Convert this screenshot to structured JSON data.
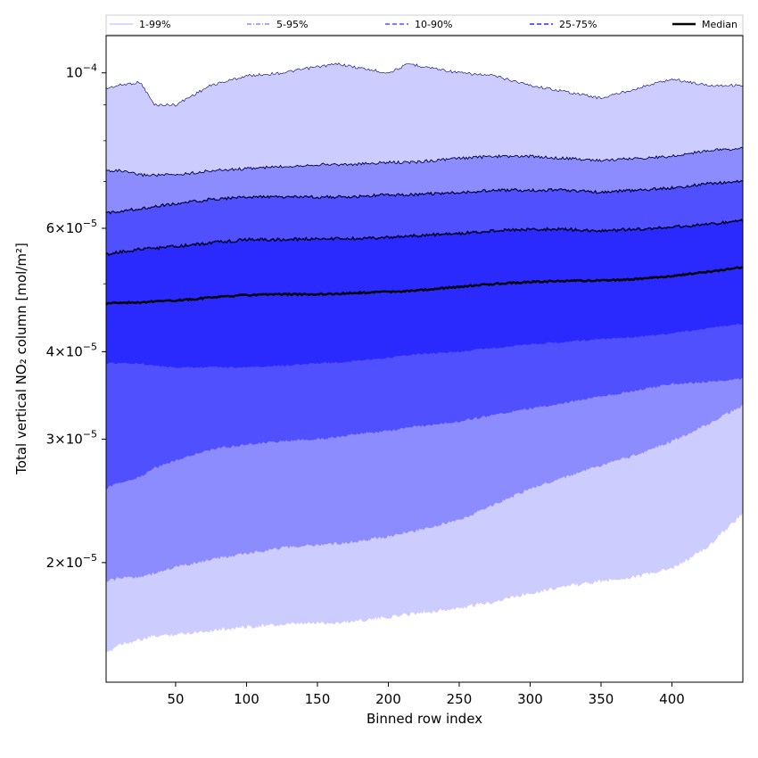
{
  "chart_data": {
    "type": "area",
    "title": "",
    "xlabel": "Binned row index",
    "ylabel": "Total vertical NO₂ column [mol/m²]",
    "xlim": [
      1,
      450
    ],
    "ylim": [
      1.35e-05,
      0.000113
    ],
    "yscale": "log",
    "x_ticks": [
      50,
      100,
      150,
      200,
      250,
      300,
      350,
      400
    ],
    "x_tick_labels": [
      "50",
      "100",
      "150",
      "200",
      "250",
      "300",
      "350",
      "400"
    ],
    "y_ticks": [
      {
        "value": 2e-05,
        "base": "2×10",
        "exp": "−5"
      },
      {
        "value": 3e-05,
        "base": "3×10",
        "exp": "−5"
      },
      {
        "value": 4e-05,
        "base": "4×10",
        "exp": "−5"
      },
      {
        "value": 6e-05,
        "base": "6×10",
        "exp": "−5"
      },
      {
        "value": 0.0001,
        "base": "10",
        "exp": "−4"
      }
    ],
    "legend_position": "top",
    "legend": [
      {
        "label": "1-99%",
        "color": "#ccccff",
        "style": "solid"
      },
      {
        "label": "5-95%",
        "color": "#8c8cff",
        "style": "dashdot"
      },
      {
        "label": "10-90%",
        "color": "#5050ff",
        "style": "dashed"
      },
      {
        "label": "25-75%",
        "color": "#2a2aff",
        "style": "dashed"
      },
      {
        "label": "Median",
        "color": "#000000",
        "style": "solid"
      }
    ],
    "x": [
      1,
      10,
      25,
      35,
      50,
      75,
      100,
      125,
      150,
      165,
      175,
      200,
      215,
      250,
      275,
      300,
      325,
      350,
      375,
      400,
      425,
      450
    ],
    "bands": [
      {
        "name": "1-99%",
        "color": "#ccccff",
        "upper": [
          9.5e-05,
          9.6e-05,
          9.7e-05,
          9e-05,
          9e-05,
          9.6e-05,
          9.9e-05,
          0.0001,
          0.000102,
          0.000103,
          0.000102,
          0.0001,
          0.000103,
          0.0001,
          9.9e-05,
          9.6e-05,
          9.4e-05,
          9.2e-05,
          9.5e-05,
          9.8e-05,
          9.6e-05,
          9.6e-05
        ],
        "lower": [
          1.48e-05,
          1.53e-05,
          1.55e-05,
          1.57e-05,
          1.58e-05,
          1.6e-05,
          1.62e-05,
          1.63e-05,
          1.64e-05,
          1.64e-05,
          1.65e-05,
          1.67e-05,
          1.69e-05,
          1.72e-05,
          1.76e-05,
          1.81e-05,
          1.85e-05,
          1.88e-05,
          1.91e-05,
          1.96e-05,
          2.1e-05,
          2.35e-05
        ]
      },
      {
        "name": "5-95%",
        "color": "#8c8cff",
        "upper": [
          7.25e-05,
          7.25e-05,
          7.15e-05,
          7.15e-05,
          7.15e-05,
          7.25e-05,
          7.3e-05,
          7.35e-05,
          7.4e-05,
          7.4e-05,
          7.4e-05,
          7.45e-05,
          7.45e-05,
          7.55e-05,
          7.6e-05,
          7.6e-05,
          7.55e-05,
          7.5e-05,
          7.55e-05,
          7.6e-05,
          7.75e-05,
          7.8e-05
        ],
        "lower": [
          1.88e-05,
          1.9e-05,
          1.91e-05,
          1.93e-05,
          1.97e-05,
          2.02e-05,
          2.06e-05,
          2.1e-05,
          2.12e-05,
          2.13e-05,
          2.14e-05,
          2.18e-05,
          2.21e-05,
          2.3e-05,
          2.42e-05,
          2.55e-05,
          2.65e-05,
          2.75e-05,
          2.85e-05,
          2.98e-05,
          3.15e-05,
          3.35e-05
        ]
      },
      {
        "name": "10-90%",
        "color": "#5050ff",
        "upper": [
          6.3e-05,
          6.35e-05,
          6.4e-05,
          6.45e-05,
          6.5e-05,
          6.6e-05,
          6.65e-05,
          6.65e-05,
          6.65e-05,
          6.65e-05,
          6.65e-05,
          6.7e-05,
          6.7e-05,
          6.75e-05,
          6.8e-05,
          6.8e-05,
          6.8e-05,
          6.75e-05,
          6.8e-05,
          6.85e-05,
          6.95e-05,
          7e-05
        ],
        "lower": [
          2.55e-05,
          2.6e-05,
          2.65e-05,
          2.73e-05,
          2.8e-05,
          2.9e-05,
          2.95e-05,
          2.98e-05,
          3e-05,
          3.02e-05,
          3.05e-05,
          3.08e-05,
          3.12e-05,
          3.18e-05,
          3.25e-05,
          3.32e-05,
          3.38e-05,
          3.45e-05,
          3.52e-05,
          3.6e-05,
          3.62e-05,
          3.66e-05
        ]
      },
      {
        "name": "25-75%",
        "color": "#2a2aff",
        "upper": [
          5.5e-05,
          5.55e-05,
          5.6e-05,
          5.62e-05,
          5.65e-05,
          5.72e-05,
          5.78e-05,
          5.78e-05,
          5.8e-05,
          5.8e-05,
          5.8e-05,
          5.82e-05,
          5.85e-05,
          5.9e-05,
          5.95e-05,
          5.98e-05,
          5.98e-05,
          5.95e-05,
          5.98e-05,
          6.02e-05,
          6.08e-05,
          6.15e-05
        ],
        "lower": [
          3.85e-05,
          3.85e-05,
          3.85e-05,
          3.82e-05,
          3.8e-05,
          3.8e-05,
          3.8e-05,
          3.82e-05,
          3.85e-05,
          3.86e-05,
          3.88e-05,
          3.92e-05,
          3.96e-05,
          4e-05,
          4.05e-05,
          4.1e-05,
          4.13e-05,
          4.17e-05,
          4.2e-05,
          4.25e-05,
          4.32e-05,
          4.38e-05
        ]
      }
    ],
    "median": {
      "name": "Median",
      "color": "#000000",
      "values": [
        4.68e-05,
        4.7e-05,
        4.7e-05,
        4.72e-05,
        4.73e-05,
        4.78e-05,
        4.82e-05,
        4.83e-05,
        4.83e-05,
        4.84e-05,
        4.85e-05,
        4.87e-05,
        4.88e-05,
        4.95e-05,
        5e-05,
        5.03e-05,
        5.05e-05,
        5.05e-05,
        5.08e-05,
        5.13e-05,
        5.2e-05,
        5.28e-05
      ]
    }
  }
}
